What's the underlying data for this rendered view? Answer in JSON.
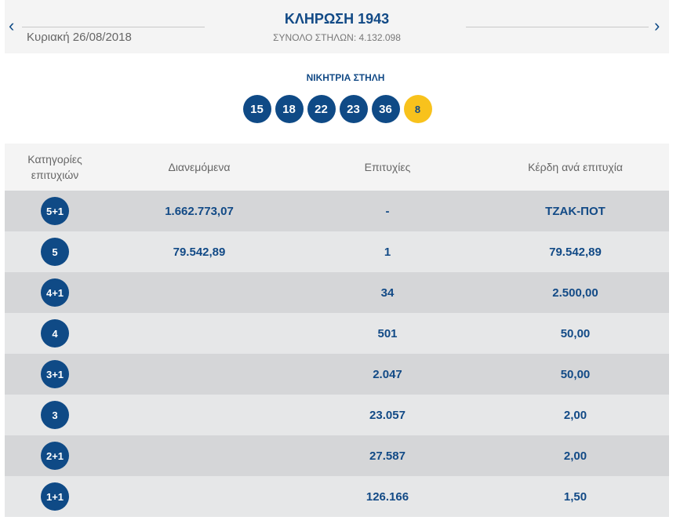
{
  "header": {
    "title": "ΚΛΗΡΩΣΗ 1943",
    "date": "Κυριακή 26/08/2018",
    "total_label": "ΣΥΝΟΛΟ ΣΤΗΛΩΝ: 4.132.098",
    "prev_icon": "chevron-left",
    "next_icon": "chevron-right"
  },
  "winning": {
    "label": "ΝΙΚΗΤΡΙΑ ΣΤΗΛΗ",
    "numbers": [
      "15",
      "18",
      "22",
      "23",
      "36"
    ],
    "bonus": "8"
  },
  "colors": {
    "navy": "#0f4a86",
    "gold": "#f8c21c"
  },
  "table": {
    "columns": [
      "Κατηγορίες επιτυχιών",
      "Διανεμόμενα",
      "Επιτυχίες",
      "Κέρδη ανά επιτυχία"
    ],
    "rows": [
      {
        "cat": "5+1",
        "dist": "1.662.773,07",
        "wins": "-",
        "prize": "ΤΖΑΚ-ΠΟΤ"
      },
      {
        "cat": "5",
        "dist": "79.542,89",
        "wins": "1",
        "prize": "79.542,89"
      },
      {
        "cat": "4+1",
        "dist": "",
        "wins": "34",
        "prize": "2.500,00"
      },
      {
        "cat": "4",
        "dist": "",
        "wins": "501",
        "prize": "50,00"
      },
      {
        "cat": "3+1",
        "dist": "",
        "wins": "2.047",
        "prize": "50,00"
      },
      {
        "cat": "3",
        "dist": "",
        "wins": "23.057",
        "prize": "2,00"
      },
      {
        "cat": "2+1",
        "dist": "",
        "wins": "27.587",
        "prize": "2,00"
      },
      {
        "cat": "1+1",
        "dist": "",
        "wins": "126.166",
        "prize": "1,50"
      }
    ]
  }
}
